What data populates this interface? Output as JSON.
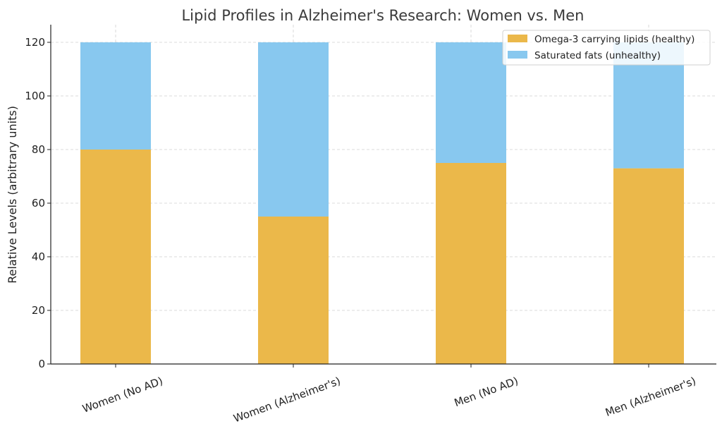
{
  "chart_data": {
    "type": "bar",
    "stacked": true,
    "title": "Lipid Profiles in Alzheimer's Research: Women vs. Men",
    "xlabel": "",
    "ylabel": "Relative Levels (arbitrary units)",
    "ylim": [
      0,
      126
    ],
    "yticks": [
      0,
      20,
      40,
      60,
      80,
      100,
      120
    ],
    "categories": [
      "Women (No AD)",
      "Women (Alzheimer's)",
      "Men (No AD)",
      "Men (Alzheimer's)"
    ],
    "series": [
      {
        "name": "Omega-3 carrying lipids (healthy)",
        "color": "#ebb84a",
        "values": [
          80,
          55,
          75,
          73
        ]
      },
      {
        "name": "Saturated fats (unhealthy)",
        "color": "#88c8ef",
        "values": [
          40,
          65,
          45,
          47
        ]
      }
    ],
    "grid": true,
    "legend_position": "top-right"
  }
}
